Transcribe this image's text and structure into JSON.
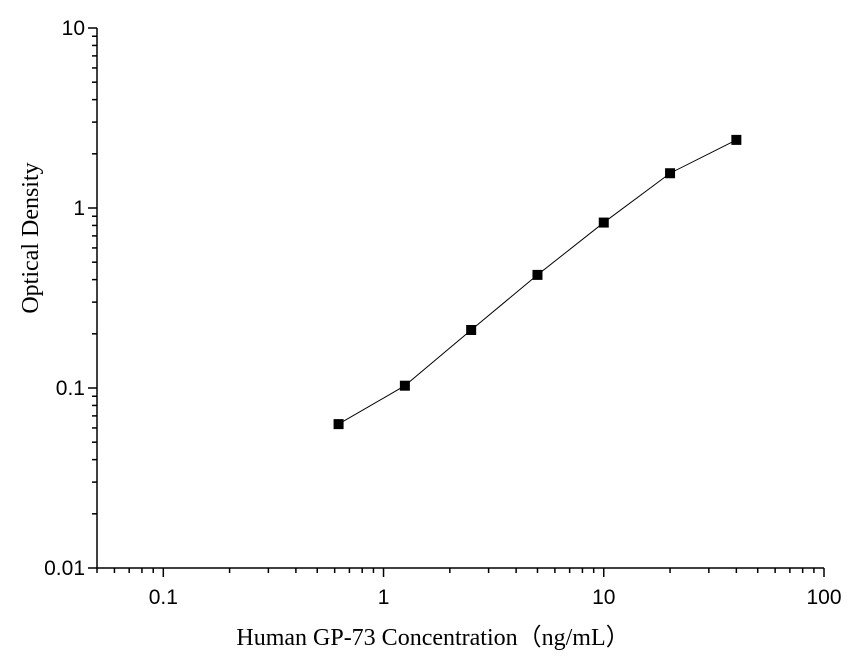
{
  "chart_data": {
    "type": "line",
    "title": "",
    "xlabel": "Human GP-73 Concentration（ng/mL）",
    "ylabel": "Optical Density",
    "x_scale": "log",
    "y_scale": "log",
    "xlim": [
      0.05,
      100
    ],
    "ylim": [
      0.01,
      10
    ],
    "x_ticks": [
      {
        "value": 0.1,
        "label": "0.1"
      },
      {
        "value": 1,
        "label": "1"
      },
      {
        "value": 10,
        "label": "10"
      },
      {
        "value": 100,
        "label": "100"
      }
    ],
    "y_ticks": [
      {
        "value": 0.01,
        "label": "0.01"
      },
      {
        "value": 0.1,
        "label": "0.1"
      },
      {
        "value": 1,
        "label": "1"
      },
      {
        "value": 10,
        "label": "10"
      }
    ],
    "grid": false,
    "legend": "none",
    "marker": "square",
    "color": "#000000",
    "series": [
      {
        "x": [
          0.625,
          1.25,
          2.5,
          5,
          10,
          20,
          40
        ],
        "y": [
          0.063,
          0.103,
          0.21,
          0.425,
          0.83,
          1.56,
          2.39
        ]
      }
    ]
  }
}
